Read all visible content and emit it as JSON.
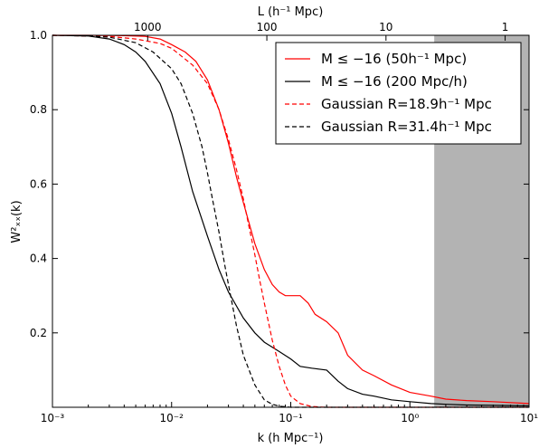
{
  "chart_data": {
    "type": "line",
    "xscale": "log",
    "xlim": [
      0.001,
      10
    ],
    "ylim": [
      0.0,
      1.0
    ],
    "xlabel": "k (h Mpc⁻¹)",
    "ylabel": "W²ₓₓ(k)",
    "top_axis_label": "L (h⁻¹ Mpc)",
    "x_tick_labels": [
      "10⁻³",
      "10⁻²",
      "10⁻¹",
      "10⁰",
      "10¹"
    ],
    "x_tick_values": [
      0.001,
      0.01,
      0.1,
      1,
      10
    ],
    "y_tick_labels": [
      "0.2",
      "0.4",
      "0.6",
      "0.8",
      "1.0"
    ],
    "y_tick_values": [
      0.2,
      0.4,
      0.6,
      0.8,
      1.0
    ],
    "top_tick_labels": [
      "1000",
      "100",
      "10",
      "1"
    ],
    "top_tick_k_values": [
      0.0063,
      0.063,
      0.63,
      6.3
    ],
    "shaded_region": {
      "x_from": 1.6,
      "x_to": 10,
      "color": "#b3b3b3"
    },
    "legend_position": "top-right",
    "series": [
      {
        "name": "M ≤ −16 (50h⁻¹ Mpc)",
        "color": "#ff0000",
        "dash": "solid",
        "x": [
          0.001,
          0.002,
          0.004,
          0.006,
          0.008,
          0.01,
          0.013,
          0.016,
          0.02,
          0.025,
          0.03,
          0.035,
          0.04,
          0.05,
          0.06,
          0.07,
          0.08,
          0.09,
          0.1,
          0.12,
          0.14,
          0.16,
          0.2,
          0.25,
          0.3,
          0.4,
          0.5,
          0.7,
          1.0,
          1.5,
          2.0,
          3.0,
          5.0,
          10.0
        ],
        "y": [
          1.0,
          1.0,
          0.999,
          0.997,
          0.99,
          0.975,
          0.955,
          0.93,
          0.88,
          0.8,
          0.71,
          0.62,
          0.55,
          0.44,
          0.37,
          0.33,
          0.31,
          0.3,
          0.3,
          0.3,
          0.28,
          0.25,
          0.23,
          0.2,
          0.14,
          0.1,
          0.085,
          0.06,
          0.04,
          0.03,
          0.022,
          0.018,
          0.015,
          0.01
        ]
      },
      {
        "name": "M ≤ −16 (200 Mpc/h)",
        "color": "#000000",
        "dash": "solid",
        "x": [
          0.001,
          0.002,
          0.003,
          0.004,
          0.005,
          0.006,
          0.008,
          0.01,
          0.012,
          0.015,
          0.02,
          0.025,
          0.03,
          0.04,
          0.05,
          0.06,
          0.08,
          0.1,
          0.12,
          0.15,
          0.2,
          0.25,
          0.3,
          0.4,
          0.5,
          0.7,
          1.0,
          1.5,
          2.0,
          3.0,
          5.0,
          10.0
        ],
        "y": [
          1.0,
          0.998,
          0.99,
          0.975,
          0.955,
          0.93,
          0.87,
          0.79,
          0.7,
          0.58,
          0.46,
          0.37,
          0.31,
          0.24,
          0.2,
          0.175,
          0.15,
          0.13,
          0.11,
          0.105,
          0.1,
          0.07,
          0.05,
          0.035,
          0.03,
          0.02,
          0.015,
          0.01,
          0.008,
          0.006,
          0.005,
          0.004
        ]
      },
      {
        "name": "Gaussian R=18.9h⁻¹ Mpc",
        "color": "#ff0000",
        "dash": "dashed",
        "x": [
          0.001,
          0.003,
          0.005,
          0.008,
          0.01,
          0.015,
          0.02,
          0.025,
          0.03,
          0.035,
          0.04,
          0.045,
          0.05,
          0.055,
          0.06,
          0.07,
          0.08,
          0.09,
          0.1,
          0.12,
          0.15,
          0.2,
          10.0
        ],
        "y": [
          1.0,
          0.997,
          0.99,
          0.978,
          0.965,
          0.92,
          0.87,
          0.8,
          0.72,
          0.64,
          0.56,
          0.48,
          0.41,
          0.34,
          0.28,
          0.18,
          0.11,
          0.06,
          0.03,
          0.01,
          0.002,
          0.0,
          0.0
        ]
      },
      {
        "name": "Gaussian R=31.4h⁻¹ Mpc",
        "color": "#000000",
        "dash": "dashed",
        "x": [
          0.001,
          0.002,
          0.003,
          0.005,
          0.007,
          0.01,
          0.012,
          0.015,
          0.018,
          0.02,
          0.022,
          0.025,
          0.028,
          0.03,
          0.035,
          0.04,
          0.05,
          0.06,
          0.07,
          0.08,
          0.1,
          0.15,
          10.0
        ],
        "y": [
          1.0,
          0.998,
          0.995,
          0.98,
          0.955,
          0.91,
          0.87,
          0.79,
          0.7,
          0.63,
          0.56,
          0.47,
          0.38,
          0.33,
          0.22,
          0.14,
          0.06,
          0.02,
          0.008,
          0.003,
          0.0,
          0.0,
          0.0
        ]
      }
    ]
  }
}
